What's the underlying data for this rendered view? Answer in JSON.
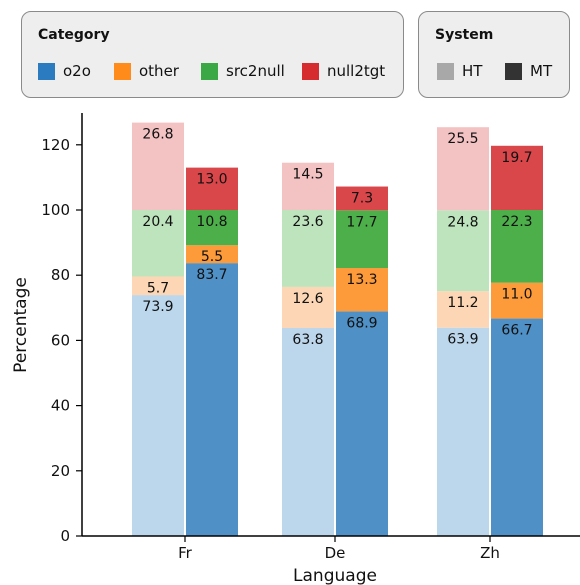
{
  "chart_data": {
    "type": "bar",
    "stacked": true,
    "xlabel": "Language",
    "ylabel": "Percentage",
    "ylim": [
      0,
      130
    ],
    "yticks": [
      0,
      20,
      40,
      60,
      80,
      100,
      120
    ],
    "categories": [
      "Fr",
      "De",
      "Zh"
    ],
    "systems": [
      "HT",
      "MT"
    ],
    "segments": [
      "o2o",
      "other",
      "src2null",
      "null2tgt"
    ],
    "values": {
      "HT": {
        "o2o": [
          73.9,
          63.8,
          63.9
        ],
        "other": [
          5.7,
          12.6,
          11.2
        ],
        "src2null": [
          20.4,
          23.6,
          24.8
        ],
        "null2tgt": [
          26.8,
          14.5,
          25.5
        ]
      },
      "MT": {
        "o2o": [
          83.7,
          68.9,
          66.7
        ],
        "other": [
          5.5,
          13.3,
          11.0
        ],
        "src2null": [
          10.8,
          17.7,
          22.3
        ],
        "null2tgt": [
          13.0,
          7.3,
          19.7
        ]
      }
    },
    "colors": {
      "MT": {
        "o2o": "#4f91c6",
        "other": "#fd9a3a",
        "src2null": "#4daf4a",
        "null2tgt": "#d9474b"
      },
      "HT": {
        "o2o": "#bcd6ec",
        "other": "#fdd7b5",
        "src2null": "#bee4bd",
        "null2tgt": "#f3c2c3"
      }
    },
    "legend": {
      "category_title": "Category",
      "categories": [
        {
          "label": "o2o",
          "color": "#2a7bc0"
        },
        {
          "label": "other",
          "color": "#ff8c1a"
        },
        {
          "label": "src2null",
          "color": "#3aa845"
        },
        {
          "label": "null2tgt",
          "color": "#d62c2f"
        }
      ],
      "system_title": "System",
      "systems": [
        {
          "label": "HT",
          "color": "#a8a8a8"
        },
        {
          "label": "MT",
          "color": "#333333"
        }
      ]
    }
  }
}
